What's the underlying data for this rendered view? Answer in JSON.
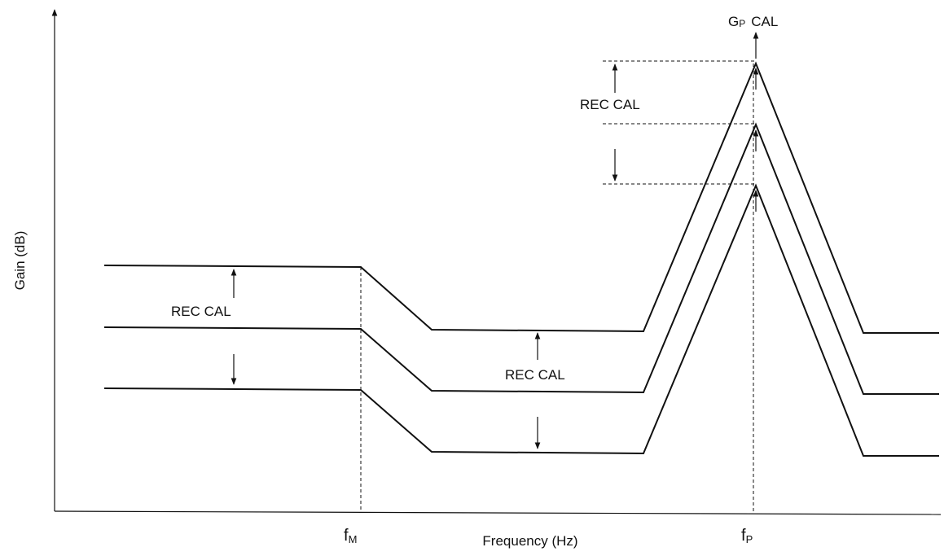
{
  "y_axis_label": "Gain (dB)",
  "x_axis_label": "Frequency (Hz)",
  "f_m": {
    "base": "f",
    "sub": "M"
  },
  "f_p": {
    "base": "f",
    "sub": "P"
  },
  "gp_cal": {
    "base": "G",
    "sub": "P",
    "rest": "CAL"
  },
  "rec_cal_labels": [
    "REC CAL",
    "REC CAL",
    "REC CAL"
  ]
}
